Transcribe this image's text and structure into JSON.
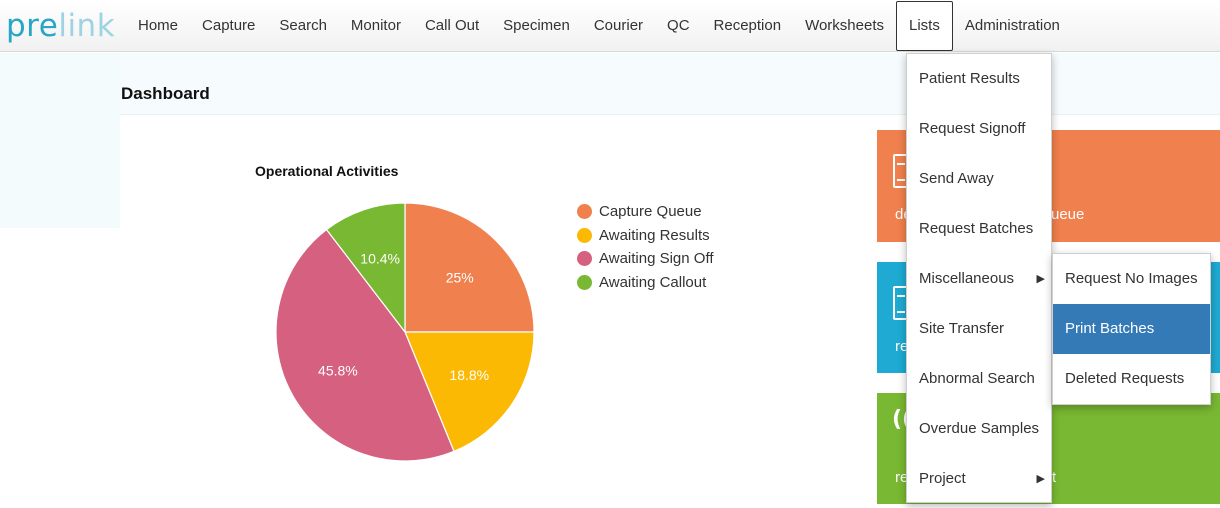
{
  "logo": {
    "part1": "pre",
    "part2": "link"
  },
  "nav": [
    {
      "label": "Home"
    },
    {
      "label": "Capture"
    },
    {
      "label": "Search"
    },
    {
      "label": "Monitor"
    },
    {
      "label": "Call Out"
    },
    {
      "label": "Specimen"
    },
    {
      "label": "Courier"
    },
    {
      "label": "QC"
    },
    {
      "label": "Reception"
    },
    {
      "label": "Worksheets"
    },
    {
      "label": "Lists",
      "active": true
    },
    {
      "label": "Administration"
    }
  ],
  "page": {
    "title": "Dashboard"
  },
  "chart_data": {
    "type": "pie",
    "title": "Operational Activities",
    "categories": [
      "Capture Queue",
      "Awaiting Results",
      "Awaiting Sign Off",
      "Awaiting Callout"
    ],
    "values": [
      25,
      18.8,
      45.8,
      10.4
    ],
    "labels": [
      "25%",
      "18.8%",
      "45.8%",
      "10.4%"
    ],
    "colors": [
      "#f0804d",
      "#fbb903",
      "#d56080",
      "#79b832"
    ],
    "legend": "right"
  },
  "tiles": [
    {
      "text": "de",
      "text_right": "ueue",
      "color": "#f0804d",
      "icon": "document-icon"
    },
    {
      "text": "re",
      "color": "#1eaad2",
      "icon": "document-icon"
    },
    {
      "text": "re",
      "text_right": "t",
      "color": "#79b832",
      "icon": "wifi-icon",
      "icon_glyph": "((·"
    }
  ],
  "lists_menu": [
    {
      "label": "Patient Results"
    },
    {
      "label": "Request Signoff"
    },
    {
      "label": "Send Away"
    },
    {
      "label": "Request Batches"
    },
    {
      "label": "Miscellaneous",
      "arrow": "▶"
    },
    {
      "label": "Site Transfer"
    },
    {
      "label": "Abnormal Search"
    },
    {
      "label": "Overdue Samples"
    },
    {
      "label": "Project",
      "arrow": "▶"
    }
  ],
  "misc_submenu": [
    {
      "label": "Request No Images"
    },
    {
      "label": "Print Batches",
      "highlighted": true
    },
    {
      "label": "Deleted Requests"
    }
  ]
}
